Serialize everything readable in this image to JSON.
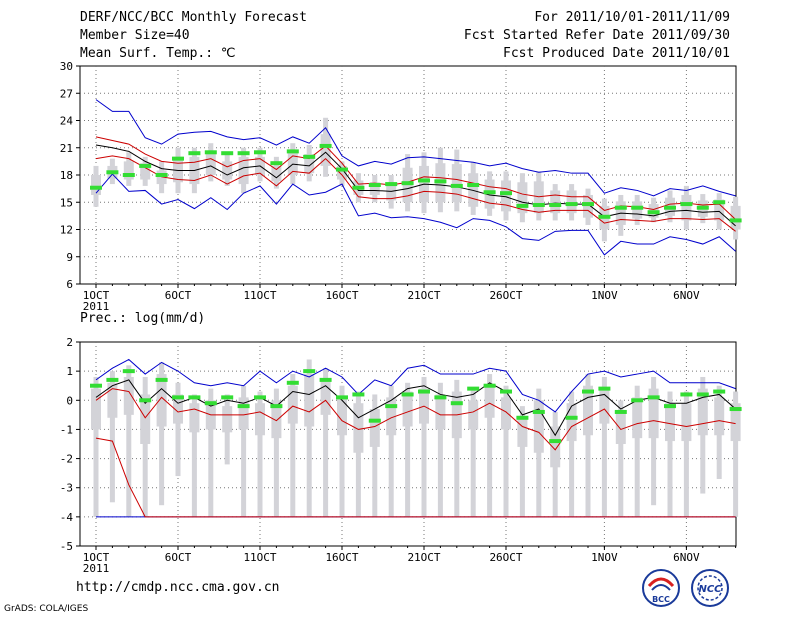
{
  "header": {
    "title": "DERF/NCC/BCC Monthly Forecast",
    "member": "Member Size=40",
    "variable": "Mean Surf. Temp.: ℃",
    "period": "For 2011/10/01-2011/11/09",
    "started": "Fcst Started Refer Date 2011/09/30",
    "produced": "Fcst Produced Date 2011/10/01"
  },
  "colors": {
    "upper_line": "#0000cc",
    "lower_line": "#cc0000",
    "mean_line": "#000000",
    "green": "#33dd33",
    "box": "#d3d3d8"
  },
  "chart_data": [
    {
      "type": "line",
      "title": "Mean Surf. Temp.: ℃",
      "ylim": [
        6,
        30
      ],
      "yticks": [
        6,
        9,
        12,
        15,
        18,
        21,
        24,
        27,
        30
      ],
      "xlabels": [
        {
          "day": 1,
          "label": "1OCT",
          "sub": "2011"
        },
        {
          "day": 6,
          "label": "6OCT"
        },
        {
          "day": 11,
          "label": "11OCT"
        },
        {
          "day": 16,
          "label": "16OCT"
        },
        {
          "day": 21,
          "label": "21OCT"
        },
        {
          "day": 26,
          "label": "26OCT"
        },
        {
          "day": 32,
          "label": "1NOV"
        },
        {
          "day": 37,
          "label": "6NOV"
        }
      ],
      "days": [
        1,
        2,
        3,
        4,
        5,
        6,
        7,
        8,
        9,
        10,
        11,
        12,
        13,
        14,
        15,
        16,
        17,
        18,
        19,
        20,
        21,
        22,
        23,
        24,
        25,
        26,
        27,
        28,
        29,
        30,
        31,
        32,
        33,
        34,
        35,
        36,
        37,
        38,
        39,
        40
      ],
      "upper": [
        26.3,
        25.0,
        25.0,
        22.1,
        21.4,
        22.5,
        22.7,
        22.8,
        22.2,
        21.9,
        22.1,
        21.3,
        22.2,
        21.5,
        23.2,
        20.1,
        19.0,
        19.5,
        19.2,
        19.9,
        20.0,
        19.8,
        19.6,
        19.4,
        19.0,
        19.3,
        18.7,
        18.3,
        18.5,
        18.2,
        18.2,
        16.0,
        16.6,
        16.3,
        15.7,
        16.5,
        16.3,
        16.8,
        16.2,
        15.7
      ],
      "lower": [
        16.0,
        18.1,
        16.2,
        16.3,
        14.8,
        15.3,
        14.3,
        15.5,
        14.2,
        16.0,
        16.8,
        14.8,
        17.0,
        15.8,
        16.1,
        17.0,
        13.5,
        13.8,
        13.3,
        13.4,
        13.2,
        12.8,
        12.2,
        13.2,
        13.0,
        12.3,
        11.0,
        10.8,
        11.8,
        11.9,
        11.9,
        9.2,
        10.7,
        10.4,
        10.4,
        11.2,
        10.9,
        10.4,
        11.2,
        9.6
      ],
      "mean": [
        21.3,
        21.0,
        20.6,
        19.5,
        18.7,
        18.5,
        18.5,
        19.0,
        18.0,
        18.8,
        19.0,
        17.7,
        19.2,
        19.0,
        20.5,
        18.7,
        16.3,
        16.3,
        16.2,
        16.5,
        17.0,
        16.9,
        16.7,
        16.3,
        15.8,
        15.6,
        15.0,
        14.7,
        14.9,
        14.8,
        14.8,
        13.4,
        13.8,
        13.7,
        13.5,
        14.0,
        14.1,
        13.9,
        14.0,
        12.4
      ],
      "p_high": [
        22.2,
        21.8,
        21.4,
        20.3,
        19.5,
        19.3,
        19.4,
        19.8,
        18.9,
        19.6,
        19.8,
        18.6,
        20.1,
        19.8,
        21.2,
        19.3,
        17.0,
        17.1,
        16.9,
        17.2,
        17.8,
        17.7,
        17.5,
        17.1,
        16.7,
        16.5,
        15.9,
        15.6,
        15.8,
        15.6,
        15.6,
        14.1,
        14.6,
        14.5,
        14.2,
        14.8,
        14.9,
        14.7,
        14.8,
        13.1
      ],
      "p_low": [
        19.8,
        20.1,
        19.8,
        18.8,
        17.8,
        17.5,
        17.4,
        18.0,
        17.0,
        17.9,
        18.2,
        16.8,
        18.4,
        18.2,
        19.8,
        18.0,
        15.6,
        15.4,
        15.4,
        15.7,
        16.2,
        16.1,
        15.9,
        15.4,
        14.9,
        14.7,
        14.2,
        13.9,
        14.1,
        14.1,
        14.1,
        12.7,
        13.1,
        13.0,
        12.9,
        13.2,
        13.2,
        13.1,
        13.2,
        11.8
      ],
      "box_top": [
        19.0,
        19.8,
        20.5,
        20.0,
        19.5,
        21.0,
        21.0,
        21.5,
        20.5,
        21.0,
        21.0,
        20.0,
        21.5,
        21.3,
        24.3,
        19.5,
        18.2,
        18.0,
        18.0,
        20.3,
        20.5,
        21.0,
        20.8,
        19.4,
        18.4,
        18.4,
        18.2,
        18.4,
        17.0,
        17.0,
        16.5,
        15.4,
        15.8,
        15.8,
        15.5,
        16.3,
        16.8,
        15.9,
        16.0,
        15.6
      ],
      "box_bottom": [
        14.5,
        17.0,
        16.8,
        16.8,
        16.0,
        16.0,
        16.0,
        17.3,
        16.8,
        16.0,
        17.3,
        16.5,
        17.0,
        17.3,
        17.8,
        16.8,
        15.0,
        15.0,
        14.3,
        14.0,
        13.8,
        13.9,
        14.0,
        13.6,
        13.5,
        13.0,
        12.8,
        13.0,
        13.0,
        13.0,
        12.5,
        10.7,
        11.3,
        12.5,
        12.8,
        12.8,
        12.0,
        12.7,
        12.0,
        10.9
      ],
      "box_q_top": [
        18.0,
        19.0,
        19.5,
        19.3,
        18.5,
        20.0,
        20.0,
        20.5,
        19.5,
        20.0,
        20.0,
        19.0,
        20.5,
        20.3,
        22.5,
        19.0,
        17.4,
        17.2,
        17.0,
        18.8,
        19.0,
        19.3,
        19.2,
        18.2,
        17.5,
        17.4,
        17.2,
        17.3,
        16.3,
        16.3,
        15.8,
        14.6,
        15.1,
        15.1,
        14.8,
        15.5,
        15.8,
        15.2,
        15.3,
        14.6
      ],
      "box_q_bottom": [
        15.8,
        17.6,
        17.5,
        17.5,
        17.0,
        17.2,
        17.0,
        18.0,
        17.5,
        17.0,
        18.0,
        17.3,
        18.0,
        18.2,
        19.0,
        17.5,
        15.8,
        15.8,
        15.2,
        15.0,
        15.0,
        15.0,
        15.0,
        14.5,
        14.3,
        14.0,
        13.8,
        13.8,
        13.8,
        13.8,
        13.3,
        12.0,
        12.5,
        13.2,
        13.3,
        13.5,
        13.0,
        13.4,
        13.0,
        12.0
      ],
      "green": [
        16.6,
        18.3,
        18.0,
        19.0,
        18.0,
        19.8,
        20.4,
        20.5,
        20.4,
        20.4,
        20.5,
        19.3,
        20.6,
        20.0,
        21.2,
        18.6,
        16.6,
        16.9,
        17.0,
        17.1,
        17.4,
        17.3,
        16.8,
        16.9,
        16.1,
        16.0,
        14.6,
        14.7,
        14.7,
        14.8,
        14.8,
        13.4,
        14.4,
        14.4,
        13.9,
        14.4,
        14.8,
        14.4,
        15.0,
        13.0
      ]
    },
    {
      "type": "line",
      "title": "Prec.: log(mm/d)",
      "ylim": [
        -5,
        2
      ],
      "yticks": [
        -5,
        -4,
        -3,
        -2,
        -1,
        0,
        1,
        2
      ],
      "xlabels": [
        {
          "day": 1,
          "label": "1OCT",
          "sub": "2011"
        },
        {
          "day": 6,
          "label": "6OCT"
        },
        {
          "day": 11,
          "label": "11OCT"
        },
        {
          "day": 16,
          "label": "16OCT"
        },
        {
          "day": 21,
          "label": "21OCT"
        },
        {
          "day": 26,
          "label": "26OCT"
        },
        {
          "day": 32,
          "label": "1NOV"
        },
        {
          "day": 37,
          "label": "6NOV"
        }
      ],
      "days": [
        1,
        2,
        3,
        4,
        5,
        6,
        7,
        8,
        9,
        10,
        11,
        12,
        13,
        14,
        15,
        16,
        17,
        18,
        19,
        20,
        21,
        22,
        23,
        24,
        25,
        26,
        27,
        28,
        29,
        30,
        31,
        32,
        33,
        34,
        35,
        36,
        37,
        38,
        39,
        40
      ],
      "upper": [
        0.7,
        1.1,
        1.4,
        0.9,
        1.3,
        1.0,
        0.6,
        0.5,
        0.6,
        0.5,
        1.0,
        0.6,
        1.0,
        0.8,
        1.1,
        0.8,
        0.2,
        0.7,
        0.5,
        1.1,
        1.2,
        0.9,
        0.9,
        0.9,
        1.1,
        1.0,
        0.2,
        0.0,
        -0.4,
        0.3,
        0.9,
        1.0,
        0.8,
        0.9,
        1.0,
        0.6,
        0.6,
        0.6,
        0.6,
        0.4
      ],
      "mean": [
        0.1,
        0.5,
        0.7,
        -0.1,
        0.4,
        -0.1,
        0.1,
        -0.2,
        0.0,
        -0.1,
        0.1,
        -0.2,
        0.3,
        0.2,
        0.5,
        0.0,
        -0.6,
        -0.3,
        0.0,
        0.4,
        0.5,
        0.2,
        0.1,
        0.2,
        0.6,
        0.3,
        -0.5,
        -0.3,
        -1.2,
        -0.2,
        0.1,
        0.2,
        -0.3,
        0.0,
        0.1,
        -0.1,
        -0.1,
        0.1,
        0.2,
        -0.3
      ],
      "lower": [
        -1.3,
        -1.4,
        -2.9,
        -4.0,
        -4.0,
        -4.0,
        -4.0,
        -4.0,
        -4.0,
        -4.0,
        -4.0,
        -4.0,
        -4.0,
        -4.0,
        -4.0,
        -4.0,
        -4.0,
        -4.0,
        -4.0,
        -4.0,
        -4.0,
        -4.0,
        -4.0,
        -4.0,
        -4.0,
        -4.0,
        -4.0,
        -4.0,
        -4.0,
        -4.0,
        -4.0,
        -4.0,
        -4.0,
        -4.0,
        -4.0,
        -4.0,
        -4.0,
        -4.0,
        -4.0,
        -4.0
      ],
      "red_mid": [
        0.0,
        0.4,
        0.3,
        -0.6,
        0.1,
        -0.4,
        -0.3,
        -0.5,
        -0.5,
        -0.5,
        -0.4,
        -0.7,
        -0.2,
        -0.4,
        0.0,
        -0.7,
        -1.0,
        -0.9,
        -0.6,
        -0.4,
        -0.2,
        -0.5,
        -0.5,
        -0.4,
        -0.1,
        -0.4,
        -0.9,
        -1.1,
        -1.7,
        -0.9,
        -0.6,
        -0.3,
        -1.0,
        -0.8,
        -0.7,
        -0.8,
        -0.9,
        -0.8,
        -0.7,
        -0.8
      ],
      "blue_floor": [
        -4.0,
        -4.0,
        -4.0,
        -4.0,
        -4.0,
        -4.0,
        -4.0,
        -4.0,
        -4.0,
        -4.0,
        -4.0,
        -4.0,
        -4.0,
        -4.0,
        -4.0,
        -4.0,
        -4.0,
        -4.0,
        -4.0,
        -4.0,
        -4.0,
        -4.0,
        -4.0,
        -4.0,
        -4.0,
        -4.0,
        -4.0,
        -4.0,
        -4.0,
        -4.0,
        -4.0,
        -4.0,
        -4.0,
        -4.0,
        -4.0,
        -4.0,
        -4.0,
        -4.0,
        -4.0,
        -4.0
      ],
      "box_top": [
        0.8,
        1.0,
        1.2,
        0.8,
        1.3,
        0.6,
        0.2,
        0.4,
        0.2,
        0.5,
        0.3,
        0.4,
        0.9,
        1.4,
        1.1,
        0.5,
        0.3,
        0.2,
        0.5,
        0.6,
        0.8,
        0.6,
        0.7,
        0.4,
        0.9,
        0.5,
        -0.2,
        0.4,
        -0.4,
        0.3,
        0.9,
        0.8,
        0.0,
        0.5,
        0.8,
        0.3,
        0.3,
        0.8,
        0.5,
        0.3
      ],
      "box_bottom": [
        -4.0,
        -3.5,
        -4.0,
        -4.0,
        -3.6,
        -2.6,
        -4.0,
        -4.0,
        -2.2,
        -4.0,
        -4.0,
        -4.0,
        -4.0,
        -4.0,
        -4.0,
        -4.0,
        -4.0,
        -4.0,
        -4.0,
        -4.0,
        -4.0,
        -4.0,
        -4.0,
        -4.0,
        -4.0,
        -4.0,
        -4.0,
        -4.0,
        -4.0,
        -4.0,
        -4.0,
        -4.0,
        -4.0,
        -4.0,
        -3.6,
        -4.0,
        -4.0,
        -3.2,
        -2.7,
        -4.0
      ],
      "box_q_top": [
        0.4,
        0.6,
        0.8,
        0.2,
        0.9,
        0.2,
        -0.1,
        0.0,
        -0.2,
        0.1,
        -0.1,
        0.0,
        0.5,
        0.9,
        0.7,
        0.1,
        -0.1,
        -0.3,
        0.1,
        0.3,
        0.4,
        0.2,
        0.3,
        0.0,
        0.5,
        0.1,
        -0.6,
        0.0,
        -0.9,
        -0.1,
        0.5,
        0.4,
        -0.4,
        0.1,
        0.4,
        -0.1,
        -0.1,
        0.4,
        0.1,
        -0.1
      ],
      "box_q_bottom": [
        -1.0,
        -0.6,
        -0.5,
        -1.5,
        -0.9,
        -0.8,
        -1.1,
        -1.0,
        -1.1,
        -1.0,
        -1.2,
        -1.3,
        -0.8,
        -0.9,
        -0.5,
        -1.2,
        -1.8,
        -1.6,
        -1.2,
        -0.9,
        -0.8,
        -1.0,
        -1.3,
        -1.0,
        -0.6,
        -1.0,
        -1.6,
        -1.8,
        -2.3,
        -1.4,
        -1.2,
        -0.8,
        -1.5,
        -1.3,
        -1.3,
        -1.4,
        -1.4,
        -1.2,
        -1.2,
        -1.4
      ],
      "green": [
        0.5,
        0.7,
        1.0,
        0.0,
        0.7,
        0.1,
        0.1,
        -0.1,
        0.1,
        -0.2,
        0.1,
        -0.2,
        0.6,
        1.0,
        0.7,
        0.1,
        0.2,
        -0.7,
        -0.2,
        0.2,
        0.3,
        0.1,
        -0.1,
        0.4,
        0.5,
        0.3,
        -0.6,
        -0.4,
        -1.4,
        -0.6,
        0.3,
        0.4,
        -0.4,
        0.0,
        0.1,
        -0.2,
        0.2,
        0.2,
        0.3,
        -0.3
      ]
    }
  ],
  "precip_label": "Prec.: log(mm/d)",
  "footer": {
    "url": "http://cmdp.ncc.cma.gov.cn",
    "credit": "GrADS: COLA/IGES",
    "logo_left_text": "BCC",
    "logo_right_text": "NCC"
  }
}
